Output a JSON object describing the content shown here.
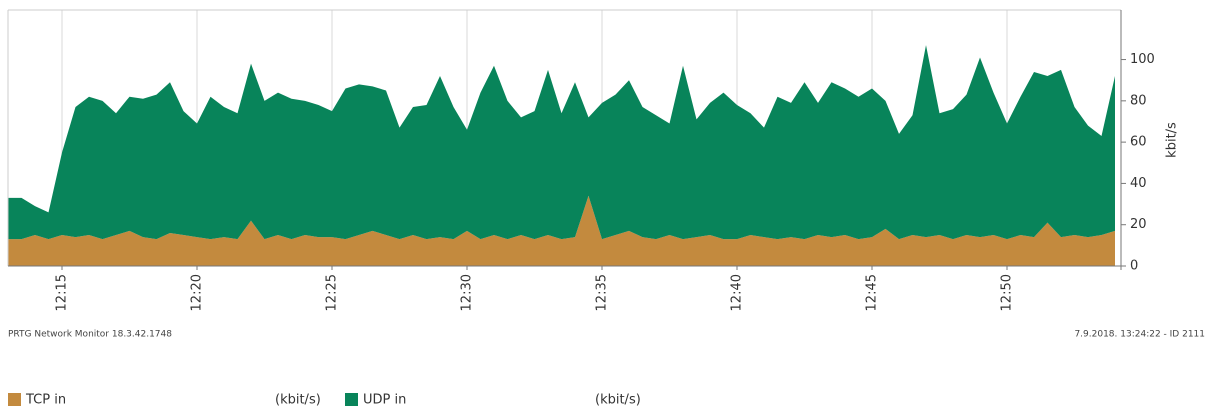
{
  "chart_data": {
    "type": "stacked_area",
    "y_label": "kbit/s",
    "footer_left": "PRTG Network Monitor 18.3.42.1748",
    "footer_right": "7.9.2018. 13:24:22 - ID 2111",
    "categories": [
      null,
      null,
      null,
      null,
      "12:15",
      null,
      null,
      null,
      null,
      null,
      null,
      null,
      null,
      null,
      "12:20",
      null,
      null,
      null,
      null,
      null,
      null,
      null,
      null,
      null,
      "12:25",
      null,
      null,
      null,
      null,
      null,
      null,
      null,
      null,
      null,
      "12:30",
      null,
      null,
      null,
      null,
      null,
      null,
      null,
      null,
      null,
      "12:35",
      null,
      null,
      null,
      null,
      null,
      null,
      null,
      null,
      null,
      "12:40",
      null,
      null,
      null,
      null,
      null,
      null,
      null,
      null,
      null,
      "12:45",
      null,
      null,
      null,
      null,
      null,
      null,
      null,
      null,
      null,
      "12:50",
      null,
      null,
      null,
      null,
      null,
      null,
      null,
      null
    ],
    "series": [
      {
        "name": "TCP in",
        "unit": "(kbit/s)",
        "color": "#c38a3e",
        "values": [
          13,
          13,
          15,
          13,
          15,
          14,
          15,
          13,
          15,
          17,
          14,
          13,
          16,
          15,
          14,
          13,
          14,
          13,
          22,
          13,
          15,
          13,
          15,
          14,
          14,
          13,
          15,
          17,
          15,
          13,
          15,
          13,
          14,
          13,
          17,
          13,
          15,
          13,
          15,
          13,
          15,
          13,
          14,
          34,
          13,
          15,
          17,
          14,
          13,
          15,
          13,
          14,
          15,
          13,
          13,
          15,
          14,
          13,
          14,
          13,
          15,
          14,
          15,
          13,
          14,
          18,
          13,
          15,
          14,
          15,
          13,
          15,
          14,
          15,
          13,
          15,
          14,
          21,
          14,
          15,
          14,
          15,
          17
        ]
      },
      {
        "name": "UDP in",
        "unit": "(kbit/s)",
        "color": "#08845a",
        "values": [
          20,
          20,
          14,
          13,
          40,
          63,
          67,
          67,
          59,
          65,
          67,
          70,
          73,
          60,
          55,
          69,
          63,
          61,
          76,
          67,
          69,
          68,
          65,
          64,
          61,
          73,
          73,
          70,
          70,
          54,
          62,
          65,
          78,
          64,
          49,
          71,
          82,
          67,
          57,
          62,
          80,
          61,
          75,
          38,
          66,
          68,
          73,
          63,
          60,
          54,
          84,
          57,
          64,
          71,
          65,
          59,
          53,
          69,
          65,
          76,
          64,
          75,
          71,
          69,
          72,
          62,
          51,
          58,
          93,
          59,
          63,
          68,
          87,
          69,
          56,
          67,
          80,
          71,
          81,
          62,
          54,
          48,
          75
        ]
      }
    ],
    "ylim": [
      0,
      124
    ],
    "yticks": [
      0,
      20,
      40,
      60,
      80,
      100
    ],
    "grid": "x"
  }
}
